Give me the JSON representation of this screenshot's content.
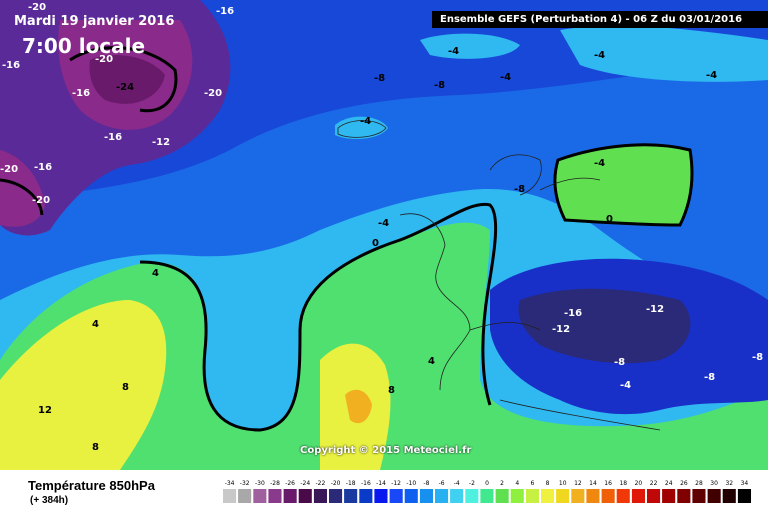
{
  "header": {
    "date": "Mardi 19 janvier 2016",
    "local_time": "7:00 locale",
    "model_run": "Ensemble GEFS  (Perturbation 4)  -  06 Z du 03/01/2016"
  },
  "copyright": "Copyright © 2015 Meteociel.fr",
  "footer": {
    "variable": "Température 850hPa",
    "lead_time": "(+ 384h)"
  },
  "legend": {
    "values": [
      "-34",
      "-32",
      "-30",
      "-28",
      "-26",
      "-24",
      "-22",
      "-20",
      "-18",
      "-16",
      "-14",
      "-12",
      "-10",
      "-8",
      "-6",
      "-4",
      "-2",
      "0",
      "2",
      "4",
      "6",
      "8",
      "10",
      "12",
      "14",
      "16",
      "18",
      "20",
      "22",
      "24",
      "26",
      "28",
      "30",
      "32",
      "34"
    ],
    "colors": [
      "#c8c8c8",
      "#a8a8a8",
      "#a060a0",
      "#8a3a8a",
      "#6a1a6a",
      "#4a0a4a",
      "#3a1858",
      "#2a2a78",
      "#1a3aa0",
      "#0a3ac8",
      "#0a18f0",
      "#1848f8",
      "#1060f0",
      "#1890f0",
      "#28b0f0",
      "#40d0f0",
      "#50f0e0",
      "#40e890",
      "#60e050",
      "#90f040",
      "#c8f040",
      "#f0f040",
      "#f0d820",
      "#f0b020",
      "#f08810",
      "#f06008",
      "#f03808",
      "#e01808",
      "#c00808",
      "#a00000",
      "#800000",
      "#600000",
      "#400000",
      "#200000",
      "#000000"
    ]
  },
  "contour_labels": [
    {
      "text": "-16",
      "region": "northwest"
    },
    {
      "text": "-20",
      "region": "greenland"
    },
    {
      "text": "-24",
      "region": "greenland"
    },
    {
      "text": "-20",
      "region": "greenland"
    },
    {
      "text": "-16",
      "region": "greenland"
    },
    {
      "text": "-16",
      "region": "greenland"
    },
    {
      "text": "-12",
      "region": "greenland"
    },
    {
      "text": "-20",
      "region": "west"
    },
    {
      "text": "-16",
      "region": "west"
    },
    {
      "text": "-20",
      "region": "west"
    },
    {
      "text": "-16",
      "region": "north"
    },
    {
      "text": "-20",
      "region": "north"
    },
    {
      "text": "-4",
      "region": "arctic"
    },
    {
      "text": "-4",
      "region": "arctic"
    },
    {
      "text": "-4",
      "region": "arctic"
    },
    {
      "text": "-4",
      "region": "arctic"
    },
    {
      "text": "-8",
      "region": "arctic"
    },
    {
      "text": "-8",
      "region": "arctic"
    },
    {
      "text": "-4",
      "region": "iceland"
    },
    {
      "text": "-8",
      "region": "norway"
    },
    {
      "text": "-4",
      "region": "scandinavia"
    },
    {
      "text": "0",
      "region": "scandinavia"
    },
    {
      "text": "-4",
      "region": "atlantic"
    },
    {
      "text": "0",
      "region": "atlantic"
    },
    {
      "text": "4",
      "region": "atlantic"
    },
    {
      "text": "4",
      "region": "atlantic"
    },
    {
      "text": "8",
      "region": "atlantic"
    },
    {
      "text": "8",
      "region": "atlantic"
    },
    {
      "text": "12",
      "region": "iberia"
    },
    {
      "text": "8",
      "region": "iberia"
    },
    {
      "text": "4",
      "region": "france"
    },
    {
      "text": "-16",
      "region": "central-europe"
    },
    {
      "text": "-12",
      "region": "central-europe"
    },
    {
      "text": "-12",
      "region": "eastern-europe"
    },
    {
      "text": "-8",
      "region": "balkans"
    },
    {
      "text": "-4",
      "region": "balkans"
    },
    {
      "text": "-8",
      "region": "black-sea"
    },
    {
      "text": "-8",
      "region": "east"
    }
  ]
}
